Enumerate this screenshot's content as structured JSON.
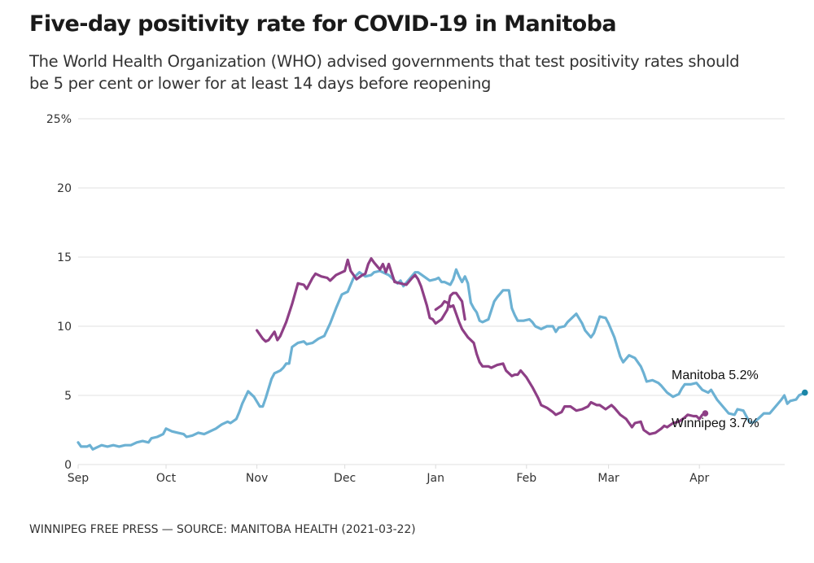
{
  "header": {
    "title": "Five-day positivity rate for COVID-19 in Manitoba",
    "subtitle": "The World Health Organization (WHO) advised governments that test positivity rates should be 5 per cent or lower for at least 14 days before reopening"
  },
  "footer": {
    "source": "WINNIPEG FREE PRESS — SOURCE: MANITOBA HEALTH (2021-03-22)"
  },
  "colors": {
    "manitoba": "#6cb1d3",
    "manitoba_dot": "#1a86a8",
    "winnipeg": "#8e3f86",
    "grid": "#e6e6e6"
  },
  "chart_data": {
    "type": "line",
    "title": "Five-day positivity rate for COVID-19 in Manitoba",
    "xlabel": "",
    "ylabel": "",
    "x_unit": "days since 2020-09-01",
    "xlim": [
      0,
      239
    ],
    "ylim": [
      0,
      25
    ],
    "grid": true,
    "y_ticks": [
      {
        "value": 0,
        "label": "0"
      },
      {
        "value": 5,
        "label": "5"
      },
      {
        "value": 10,
        "label": "10"
      },
      {
        "value": 15,
        "label": "15"
      },
      {
        "value": 20,
        "label": "20"
      },
      {
        "value": 25,
        "label": "25%"
      }
    ],
    "x_ticks": [
      {
        "value": 0,
        "label": "Sep"
      },
      {
        "value": 30,
        "label": "Oct"
      },
      {
        "value": 61,
        "label": "Nov"
      },
      {
        "value": 91,
        "label": "Dec"
      },
      {
        "value": 122,
        "label": "Jan"
      },
      {
        "value": 153,
        "label": "Feb"
      },
      {
        "value": 181,
        "label": "Mar"
      },
      {
        "value": 212,
        "label": "Apr"
      }
    ],
    "series": [
      {
        "name": "Manitoba",
        "end_label": "Manitoba 5.2%",
        "points": [
          [
            0,
            1.6
          ],
          [
            1,
            1.3
          ],
          [
            3,
            1.3
          ],
          [
            4,
            1.4
          ],
          [
            5,
            1.1
          ],
          [
            6,
            1.2
          ],
          [
            8,
            1.4
          ],
          [
            10,
            1.3
          ],
          [
            12,
            1.4
          ],
          [
            14,
            1.3
          ],
          [
            16,
            1.4
          ],
          [
            18,
            1.4
          ],
          [
            20,
            1.6
          ],
          [
            22,
            1.7
          ],
          [
            24,
            1.6
          ],
          [
            25,
            1.9
          ],
          [
            27,
            2.0
          ],
          [
            29,
            2.2
          ],
          [
            30,
            2.6
          ],
          [
            32,
            2.4
          ],
          [
            34,
            2.3
          ],
          [
            36,
            2.2
          ],
          [
            37,
            2.0
          ],
          [
            39,
            2.1
          ],
          [
            41,
            2.3
          ],
          [
            43,
            2.2
          ],
          [
            45,
            2.4
          ],
          [
            47,
            2.6
          ],
          [
            49,
            2.9
          ],
          [
            51,
            3.1
          ],
          [
            52,
            3.0
          ],
          [
            54,
            3.3
          ],
          [
            55,
            3.8
          ],
          [
            56,
            4.4
          ],
          [
            58,
            5.3
          ],
          [
            60,
            4.9
          ],
          [
            62,
            4.2
          ],
          [
            63,
            4.2
          ],
          [
            64,
            4.8
          ],
          [
            66,
            6.2
          ],
          [
            67,
            6.6
          ],
          [
            69,
            6.8
          ],
          [
            70,
            7.0
          ],
          [
            71,
            7.3
          ],
          [
            72,
            7.3
          ],
          [
            73,
            8.5
          ],
          [
            75,
            8.8
          ],
          [
            77,
            8.9
          ],
          [
            78,
            8.7
          ],
          [
            80,
            8.8
          ],
          [
            82,
            9.1
          ],
          [
            84,
            9.3
          ],
          [
            86,
            10.2
          ],
          [
            88,
            11.3
          ],
          [
            90,
            12.3
          ],
          [
            92,
            12.5
          ],
          [
            94,
            13.5
          ],
          [
            96,
            13.9
          ],
          [
            98,
            13.6
          ],
          [
            100,
            13.7
          ],
          [
            101,
            13.9
          ],
          [
            103,
            14.0
          ],
          [
            105,
            13.8
          ],
          [
            106,
            13.7
          ],
          [
            107,
            13.5
          ],
          [
            109,
            13.1
          ],
          [
            110,
            13.3
          ],
          [
            111,
            12.9
          ],
          [
            113,
            13.4
          ],
          [
            115,
            13.9
          ],
          [
            116,
            13.9
          ],
          [
            118,
            13.6
          ],
          [
            120,
            13.3
          ],
          [
            122,
            13.4
          ],
          [
            123,
            13.5
          ],
          [
            124,
            13.2
          ],
          [
            125,
            13.2
          ],
          [
            127,
            13.0
          ],
          [
            128,
            13.4
          ],
          [
            129,
            14.1
          ],
          [
            130,
            13.6
          ],
          [
            131,
            13.2
          ],
          [
            132,
            13.6
          ],
          [
            133,
            13.1
          ],
          [
            134,
            11.7
          ],
          [
            135,
            11.3
          ],
          [
            136,
            11.0
          ],
          [
            137,
            10.4
          ],
          [
            138,
            10.3
          ],
          [
            140,
            10.5
          ],
          [
            142,
            11.8
          ],
          [
            143,
            12.1
          ],
          [
            145,
            12.6
          ],
          [
            147,
            12.6
          ],
          [
            148,
            11.3
          ],
          [
            149,
            10.8
          ],
          [
            150,
            10.4
          ],
          [
            152,
            10.4
          ],
          [
            154,
            10.5
          ],
          [
            155,
            10.3
          ],
          [
            156,
            10.0
          ],
          [
            158,
            9.8
          ],
          [
            160,
            10.0
          ],
          [
            162,
            10.0
          ],
          [
            163,
            9.6
          ],
          [
            164,
            9.9
          ],
          [
            166,
            10.0
          ],
          [
            167,
            10.3
          ],
          [
            169,
            10.7
          ],
          [
            170,
            10.9
          ],
          [
            172,
            10.2
          ],
          [
            173,
            9.7
          ],
          [
            175,
            9.2
          ],
          [
            176,
            9.5
          ],
          [
            178,
            10.7
          ],
          [
            180,
            10.6
          ],
          [
            181,
            10.2
          ],
          [
            183,
            9.2
          ],
          [
            185,
            7.8
          ],
          [
            186,
            7.4
          ],
          [
            188,
            7.9
          ],
          [
            190,
            7.7
          ],
          [
            192,
            7.1
          ],
          [
            193,
            6.6
          ],
          [
            194,
            6.0
          ],
          [
            196,
            6.1
          ],
          [
            198,
            5.9
          ],
          [
            199,
            5.7
          ],
          [
            201,
            5.2
          ],
          [
            203,
            4.9
          ],
          [
            205,
            5.1
          ],
          [
            206,
            5.5
          ],
          [
            207,
            5.8
          ],
          [
            209,
            5.8
          ],
          [
            211,
            5.9
          ],
          [
            213,
            5.4
          ],
          [
            215,
            5.2
          ],
          [
            216,
            5.4
          ],
          [
            218,
            4.7
          ],
          [
            220,
            4.2
          ],
          [
            222,
            3.7
          ],
          [
            224,
            3.6
          ],
          [
            225,
            4.0
          ],
          [
            227,
            3.9
          ],
          [
            229,
            3.1
          ],
          [
            230,
            3.0
          ],
          [
            232,
            3.3
          ],
          [
            234,
            3.7
          ],
          [
            236,
            3.7
          ],
          [
            238,
            4.2
          ],
          [
            240,
            4.7
          ],
          [
            241,
            5.0
          ],
          [
            242,
            4.4
          ],
          [
            243,
            4.6
          ],
          [
            245,
            4.7
          ],
          [
            246,
            5.0
          ],
          [
            248,
            5.2
          ]
        ]
      },
      {
        "name": "Winnipeg",
        "end_label": "Winnipeg 3.7%",
        "segments": [
          [
            [
              61,
              9.7
            ],
            [
              63,
              9.1
            ],
            [
              64,
              8.9
            ],
            [
              65,
              9.0
            ],
            [
              67,
              9.6
            ],
            [
              68,
              9.0
            ],
            [
              69,
              9.3
            ],
            [
              71,
              10.3
            ],
            [
              73,
              11.6
            ],
            [
              75,
              13.1
            ],
            [
              77,
              13.0
            ],
            [
              78,
              12.7
            ],
            [
              80,
              13.5
            ],
            [
              81,
              13.8
            ],
            [
              83,
              13.6
            ],
            [
              85,
              13.5
            ],
            [
              86,
              13.3
            ],
            [
              88,
              13.7
            ],
            [
              90,
              13.9
            ],
            [
              91,
              14.0
            ],
            [
              92,
              14.8
            ],
            [
              93,
              14.0
            ],
            [
              95,
              13.4
            ],
            [
              97,
              13.7
            ],
            [
              98,
              13.8
            ],
            [
              99,
              14.5
            ],
            [
              100,
              14.9
            ],
            [
              101,
              14.6
            ],
            [
              103,
              14.1
            ],
            [
              104,
              14.5
            ],
            [
              105,
              13.9
            ],
            [
              106,
              14.5
            ],
            [
              108,
              13.2
            ],
            [
              110,
              13.1
            ],
            [
              112,
              13.0
            ],
            [
              114,
              13.5
            ],
            [
              115,
              13.7
            ],
            [
              116,
              13.4
            ],
            [
              117,
              12.9
            ],
            [
              119,
              11.5
            ],
            [
              120,
              10.6
            ],
            [
              121,
              10.5
            ],
            [
              122,
              10.2
            ],
            [
              124,
              10.5
            ],
            [
              126,
              11.2
            ],
            [
              127,
              12.2
            ],
            [
              128,
              12.4
            ],
            [
              129,
              12.4
            ],
            [
              130,
              12.1
            ],
            [
              131,
              11.8
            ],
            [
              132,
              10.5
            ]
          ],
          [
            [
              122,
              11.2
            ],
            [
              124,
              11.5
            ],
            [
              125,
              11.8
            ],
            [
              126,
              11.7
            ],
            [
              127,
              11.4
            ],
            [
              128,
              11.5
            ],
            [
              130,
              10.3
            ],
            [
              131,
              9.8
            ],
            [
              133,
              9.2
            ],
            [
              135,
              8.8
            ],
            [
              136,
              8.0
            ],
            [
              137,
              7.4
            ],
            [
              138,
              7.1
            ],
            [
              140,
              7.1
            ],
            [
              141,
              7.0
            ],
            [
              143,
              7.2
            ],
            [
              145,
              7.3
            ],
            [
              146,
              6.8
            ],
            [
              148,
              6.4
            ],
            [
              149,
              6.5
            ],
            [
              150,
              6.5
            ],
            [
              151,
              6.8
            ],
            [
              153,
              6.3
            ],
            [
              155,
              5.6
            ],
            [
              157,
              4.8
            ],
            [
              158,
              4.3
            ],
            [
              160,
              4.1
            ],
            [
              162,
              3.8
            ],
            [
              163,
              3.6
            ],
            [
              165,
              3.8
            ],
            [
              166,
              4.2
            ],
            [
              168,
              4.2
            ],
            [
              170,
              3.9
            ],
            [
              172,
              4.0
            ],
            [
              174,
              4.2
            ],
            [
              175,
              4.5
            ],
            [
              177,
              4.3
            ],
            [
              178,
              4.3
            ],
            [
              180,
              4.0
            ],
            [
              182,
              4.3
            ],
            [
              183,
              4.1
            ],
            [
              185,
              3.6
            ],
            [
              187,
              3.3
            ],
            [
              189,
              2.7
            ],
            [
              190,
              3.0
            ],
            [
              192,
              3.1
            ],
            [
              193,
              2.5
            ],
            [
              195,
              2.2
            ],
            [
              197,
              2.3
            ],
            [
              199,
              2.6
            ],
            [
              200,
              2.8
            ],
            [
              201,
              2.7
            ],
            [
              203,
              3.0
            ],
            [
              205,
              3.1
            ],
            [
              207,
              3.4
            ],
            [
              208,
              3.6
            ],
            [
              210,
              3.5
            ],
            [
              211,
              3.5
            ],
            [
              212,
              3.3
            ],
            [
              213,
              3.6
            ],
            [
              214,
              3.7
            ]
          ]
        ]
      }
    ],
    "annotations": [
      {
        "series": "Manitoba",
        "text": "Manitoba 5.2%",
        "value": 5.2
      },
      {
        "series": "Winnipeg",
        "text": "Winnipeg 3.7%",
        "value": 3.7
      }
    ]
  }
}
